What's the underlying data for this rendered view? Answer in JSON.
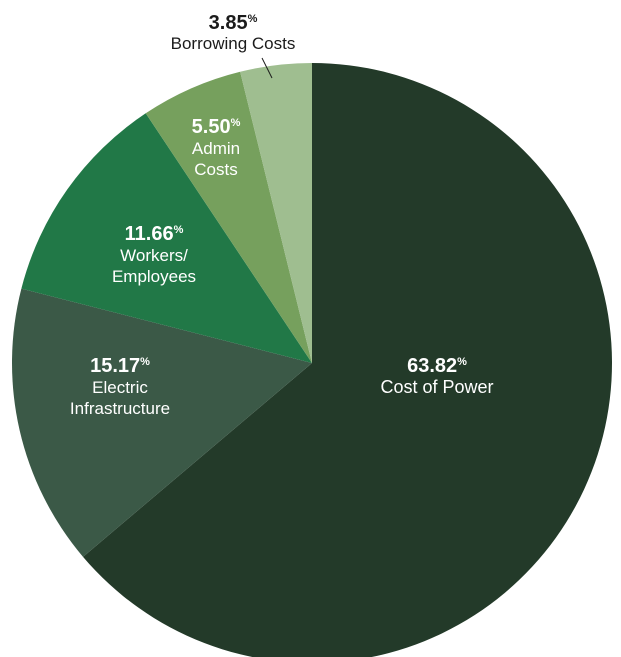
{
  "chart_data": {
    "type": "pie",
    "title": "",
    "start_angle_deg": 0,
    "direction": "clockwise",
    "slices": [
      {
        "value": 63.82,
        "display": "63.82",
        "unit": "%",
        "label_lines": [
          "Cost of Power"
        ],
        "color": "#233a29"
      },
      {
        "value": 15.17,
        "display": "15.17",
        "unit": "%",
        "label_lines": [
          "Electric",
          "Infrastructure"
        ],
        "color": "#3b5947"
      },
      {
        "value": 11.66,
        "display": "11.66",
        "unit": "%",
        "label_lines": [
          "Workers/",
          "Employees"
        ],
        "color": "#217847"
      },
      {
        "value": 5.5,
        "display": "5.50",
        "unit": "%",
        "label_lines": [
          "Admin",
          "Costs"
        ],
        "color": "#76a05d"
      },
      {
        "value": 3.85,
        "display": "3.85",
        "unit": "%",
        "label_lines": [
          "Borrowing Costs"
        ],
        "color": "#9fbe90"
      }
    ]
  }
}
